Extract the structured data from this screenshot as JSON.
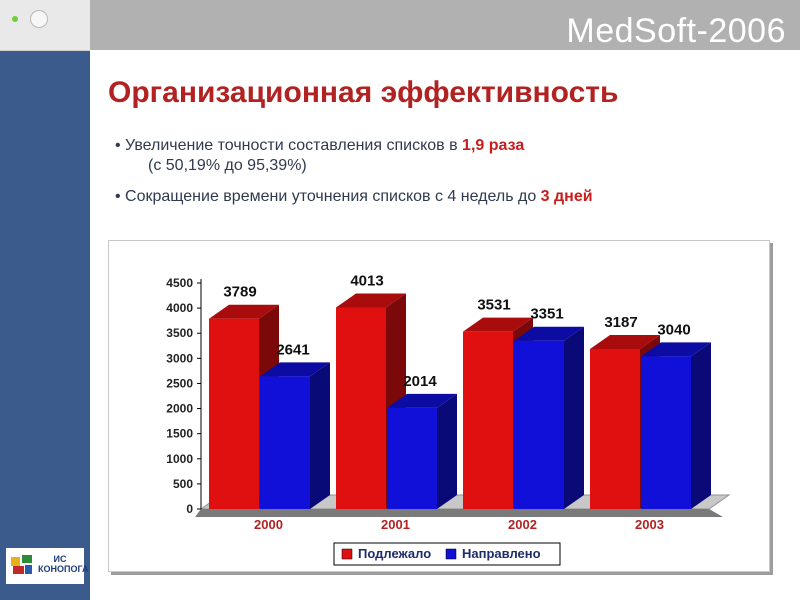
{
  "slide": {
    "brand": "MedSoft-2006",
    "title": "Организационная эффективность",
    "bullet1_pre": "• Увеличение точности составления списков в ",
    "bullet1_highlight": "1,9 раза",
    "bullet1_sub": "(с 50,19% до 95,39%)",
    "bullet2_pre": "• Сокращение времени уточнения списков с 4 недель до ",
    "bullet2_highlight": "3 дней",
    "logo_text": "ИС КОНОПОГА",
    "colors": {
      "sidebar": "#3b5b8d",
      "title": "#b22222",
      "band": "#b1b1b1"
    }
  },
  "chart_data": {
    "type": "bar",
    "categories": [
      "2000",
      "2001",
      "2002",
      "2003"
    ],
    "series": [
      {
        "name": "Подлежало",
        "values": [
          3789,
          4013,
          3531,
          3187
        ],
        "color": "#e01010"
      },
      {
        "name": "Направлено",
        "values": [
          2641,
          2014,
          3351,
          3040
        ],
        "color": "#1010d8"
      }
    ],
    "yticks": [
      0,
      500,
      1000,
      1500,
      2000,
      2500,
      3000,
      3500,
      4000,
      4500
    ],
    "ylim": [
      0,
      4500
    ],
    "title": "",
    "xlabel": "",
    "ylabel": "",
    "legend_position": "bottom",
    "grid": false,
    "style": "3d"
  }
}
